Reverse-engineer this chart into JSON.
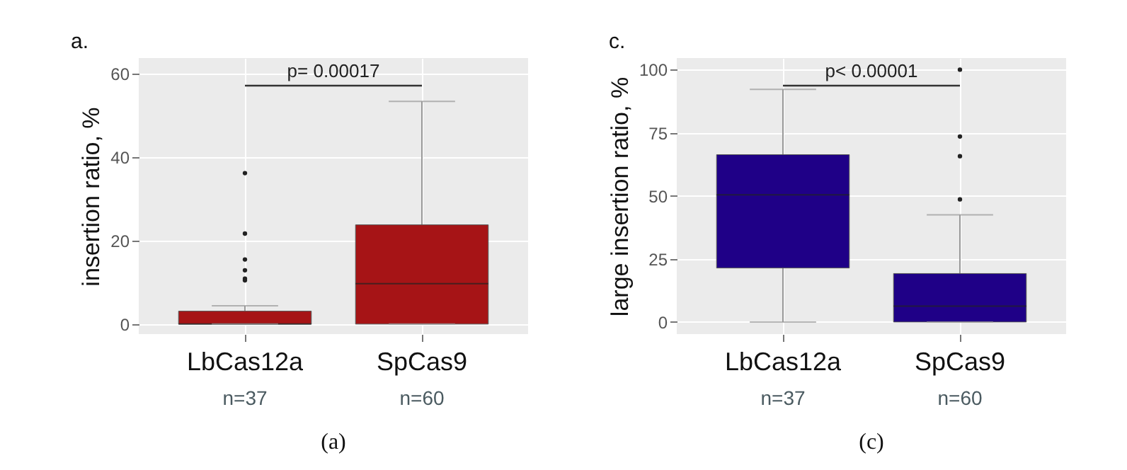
{
  "chart_data": [
    {
      "type": "box",
      "ylabel": "insertion ratio, %",
      "categories": [
        "LbCas12a",
        "SpCas9"
      ],
      "ylim": [
        -2.4,
        63.8
      ],
      "yticks": [
        0,
        20,
        40,
        60
      ],
      "grid": true,
      "color": "#a61416",
      "boxes": [
        {
          "low": 0,
          "q1": 0,
          "median": 0,
          "q3": 3.1,
          "high": 4.4,
          "outliers": [
            36.2,
            21.7,
            15.5,
            12.9,
            10.9,
            10.5
          ]
        },
        {
          "low": 0,
          "q1": 0,
          "median": 9.7,
          "q3": 23.8,
          "high": 53.4
        }
      ],
      "annotations": [
        "a.",
        "(a)",
        "n=37",
        "n=60",
        "p= 0.00017"
      ]
    },
    {
      "type": "box",
      "ylabel": "large insertion ratio, %",
      "categories": [
        "LbCas12a",
        "SpCas9"
      ],
      "ylim": [
        -4.8,
        104.6
      ],
      "yticks": [
        0,
        25,
        50,
        75,
        100
      ],
      "grid": true,
      "color": "#1f0087",
      "boxes": [
        {
          "low": 0,
          "q1": 21.4,
          "median": 50.4,
          "q3": 66.3,
          "high": 92.2
        },
        {
          "low": 0,
          "q1": 0,
          "median": 6.3,
          "q3": 19.2,
          "high": 42.5,
          "outliers": [
            48.6,
            65.7,
            73.5,
            100
          ]
        }
      ],
      "annotations": [
        "c.",
        "(c)",
        "n=37",
        "n=60",
        "p< 0.00001"
      ]
    }
  ]
}
